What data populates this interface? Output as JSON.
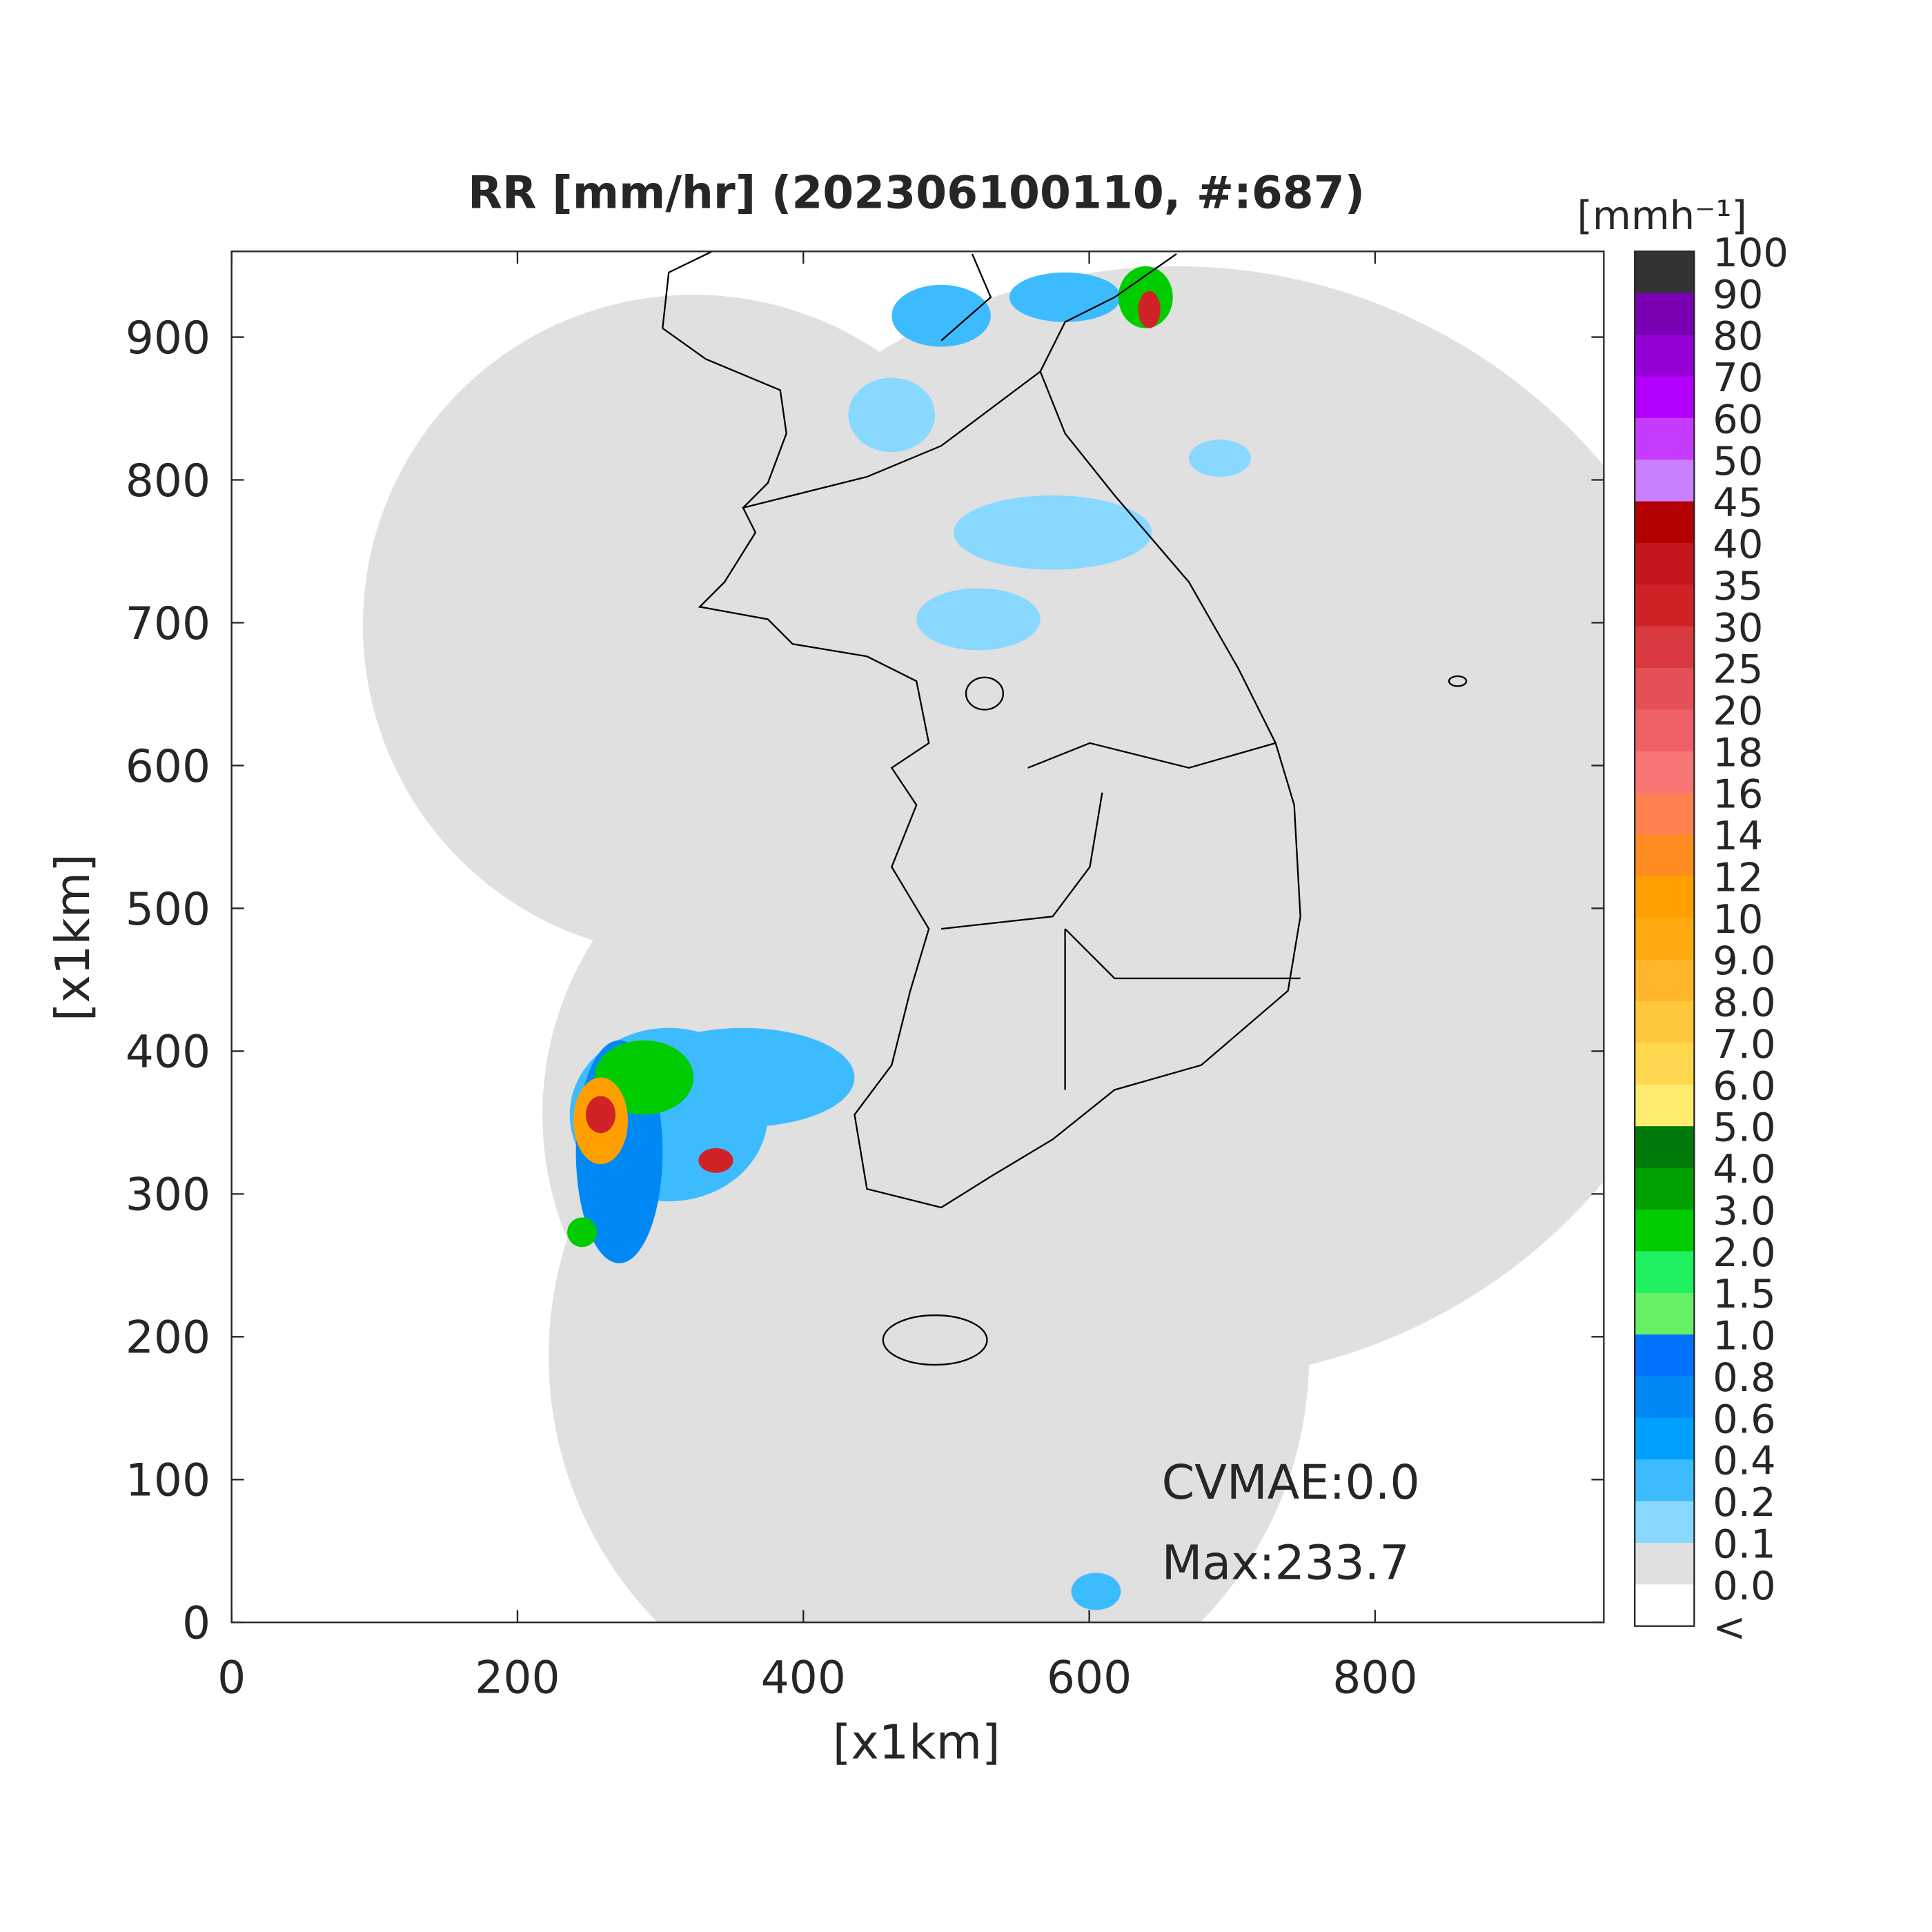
{
  "chart_data": {
    "type": "radar-map",
    "title": "RR [mm/hr] (202306100110, #:687)",
    "x_label": "[x1km]",
    "y_label": "[x1km]",
    "xlim": [
      0,
      960
    ],
    "ylim": [
      0,
      960
    ],
    "xticks": [
      0,
      200,
      400,
      600,
      800
    ],
    "yticks": [
      0,
      100,
      200,
      300,
      400,
      500,
      600,
      700,
      800,
      900
    ],
    "annotations": [
      "CVMAE:0.0",
      "Max:233.7"
    ],
    "colorbar": {
      "label": "[mmh⁻¹]",
      "levels": [
        "100",
        "90",
        "80",
        "70",
        "60",
        "50",
        "45",
        "40",
        "35",
        "30",
        "25",
        "20",
        "18",
        "16",
        "14",
        "12",
        "10",
        "9.0",
        "8.0",
        "7.0",
        "6.0",
        "5.0",
        "4.0",
        "3.0",
        "2.0",
        "1.5",
        "1.0",
        "0.8",
        "0.6",
        "0.4",
        "0.2",
        "0.1",
        "0.0",
        "<"
      ],
      "colors": [
        "#333333",
        "#7a00b3",
        "#9400d3",
        "#b300ff",
        "#c63cff",
        "#c880ff",
        "#b30000",
        "#c4161c",
        "#cf2328",
        "#d83a3f",
        "#e55058",
        "#ef6066",
        "#f77575",
        "#ff8050",
        "#ff8c20",
        "#ffa000",
        "#ffaa10",
        "#ffb62a",
        "#ffc83c",
        "#ffd84f",
        "#ffeb6e",
        "#007a0a",
        "#00a000",
        "#00cc00",
        "#1ef060",
        "#66f066",
        "#0073ff",
        "#0088f5",
        "#00a0ff",
        "#3cbcff",
        "#88d8ff",
        "#e0e0e0",
        "#ffffff"
      ]
    }
  }
}
